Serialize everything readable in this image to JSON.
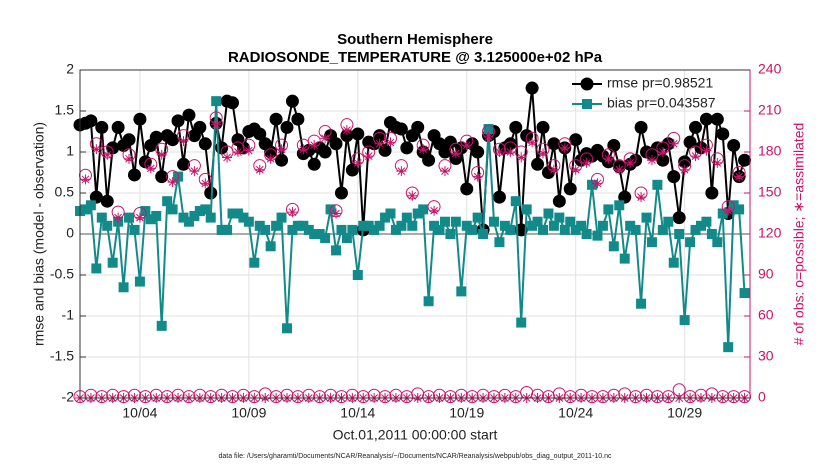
{
  "chart_data": {
    "type": "line",
    "title": "Southern Hemisphere",
    "subtitle": "RADIOSONDE_TEMPERATURE @ 3.125000e+02 hPa",
    "xlabel": "Oct.01,2011 00:00:00 start",
    "ylabel": "rmse and bias (model - observation)",
    "y2label": "# of obs: o=possible; ∗=assimilated",
    "footnote": "data file: /Users/gharamti/Documents/NCAR/Reanalysis/~/Documents/NCAR/Reanalysis/webpub/obs_diag_output_2011-10.nc",
    "xlim": [
      1.25,
      32
    ],
    "xticks": [
      {
        "value": 4,
        "label": "10/04"
      },
      {
        "value": 9,
        "label": "10/09"
      },
      {
        "value": 14,
        "label": "10/14"
      },
      {
        "value": 19,
        "label": "10/19"
      },
      {
        "value": 24,
        "label": "10/24"
      },
      {
        "value": 29,
        "label": "10/29"
      }
    ],
    "ylim": [
      -2,
      2
    ],
    "yticks": [
      -2,
      -1.5,
      -1,
      -0.5,
      0,
      0.5,
      1,
      1.5,
      2
    ],
    "y2lim": [
      0,
      240
    ],
    "y2ticks": [
      0,
      30,
      60,
      90,
      120,
      150,
      180,
      210,
      240
    ],
    "hline": 0,
    "grid": true,
    "legend": "upper right",
    "x": [
      1.25,
      1.5,
      1.75,
      2,
      2.25,
      2.5,
      2.75,
      3,
      3.25,
      3.5,
      3.75,
      4,
      4.25,
      4.5,
      4.75,
      5,
      5.25,
      5.5,
      5.75,
      6,
      6.25,
      6.5,
      6.75,
      7,
      7.25,
      7.5,
      7.75,
      8,
      8.25,
      8.5,
      8.75,
      9,
      9.25,
      9.5,
      9.75,
      10,
      10.25,
      10.5,
      10.75,
      11,
      11.25,
      11.5,
      11.75,
      12,
      12.25,
      12.5,
      12.75,
      13,
      13.25,
      13.5,
      13.75,
      14,
      14.25,
      14.5,
      14.75,
      15,
      15.25,
      15.5,
      15.75,
      16,
      16.25,
      16.5,
      16.75,
      17,
      17.25,
      17.5,
      17.75,
      18,
      18.25,
      18.5,
      18.75,
      19,
      19.25,
      19.5,
      19.75,
      20,
      20.25,
      20.5,
      20.75,
      21,
      21.25,
      21.5,
      21.75,
      22,
      22.25,
      22.5,
      22.75,
      23,
      23.25,
      23.5,
      23.75,
      24,
      24.25,
      24.5,
      24.75,
      25,
      25.25,
      25.5,
      25.75,
      26,
      26.25,
      26.5,
      26.75,
      27,
      27.25,
      27.5,
      27.75,
      28,
      28.25,
      28.5,
      28.75,
      29,
      29.25,
      29.5,
      29.75,
      30,
      30.25,
      30.5,
      30.75,
      31,
      31.25,
      31.5,
      31.75
    ],
    "series": [
      {
        "name": "rmse pr=0.98521",
        "color": "#000000",
        "marker": "circle",
        "values": [
          1.33,
          1.35,
          1.38,
          0.45,
          1.3,
          0.4,
          1.05,
          1.3,
          1.08,
          1.15,
          0.72,
          1.4,
          0.88,
          1.08,
          1.18,
          0.7,
          1.2,
          1.15,
          1.38,
          0.85,
          1.45,
          1.2,
          1.3,
          1.1,
          0.5,
          1.35,
          1.05,
          1.62,
          1.6,
          1.15,
          1.05,
          1.25,
          1.28,
          1.22,
          1.1,
          1.0,
          1.4,
          0.9,
          1.3,
          1.62,
          1.4,
          0.98,
          1.02,
          0.85,
          1.05,
          1.0,
          1.2,
          1.1,
          0.5,
          1.2,
          0.78,
          1.22,
          0.05,
          1.12,
          1.1,
          1.2,
          1.02,
          1.36,
          1.3,
          1.28,
          1.05,
          1.2,
          1.3,
          1.0,
          0.9,
          1.2,
          1.1,
          1.0,
          1.12,
          0.92,
          1.05,
          0.55,
          1.1,
          1.0,
          0.05,
          1.2,
          1.25,
          0.45,
          1.05,
          1.1,
          1.3,
          0.05,
          1.2,
          1.78,
          0.85,
          1.3,
          0.75,
          1.1,
          0.4,
          1.05,
          0.55,
          1.15,
          0.9,
          0.98,
          0.95,
          1.02,
          0.95,
          0.88,
          1.08,
          0.82,
          0.45,
          0.85,
          0.9,
          1.3,
          1.0,
          0.98,
          1.05,
          0.9,
          1.1,
          0.7,
          0.2,
          0.88,
          1.12,
          1.3,
          1.05,
          1.4,
          0.5,
          1.4,
          1.22,
          0.25,
          1.08,
          0.7,
          0.9
        ]
      },
      {
        "name": "bias pr=0.043587",
        "color": "#138a8a",
        "marker": "square",
        "values": [
          0.28,
          0.3,
          0.35,
          -0.42,
          0.2,
          0.1,
          -0.35,
          0.15,
          -0.65,
          0.2,
          0.05,
          -0.58,
          0.28,
          0.18,
          0.22,
          -1.12,
          0.4,
          0.3,
          0.7,
          0.2,
          0.15,
          0.22,
          0.28,
          0.3,
          0.2,
          1.62,
          0.05,
          0.05,
          0.25,
          0.25,
          0.2,
          0.15,
          -0.35,
          0.1,
          0.05,
          -0.15,
          0.1,
          0.2,
          -1.15,
          0.05,
          0.1,
          0.1,
          0.05,
          0.0,
          0.0,
          -0.05,
          0.3,
          -0.2,
          0.05,
          -0.05,
          0.05,
          -0.5,
          0.1,
          0.1,
          0.05,
          0.1,
          0.2,
          0.25,
          0.05,
          0.1,
          0.2,
          0.1,
          0.25,
          0.3,
          -0.82,
          0.1,
          0.05,
          0.15,
          0.0,
          0.15,
          -0.7,
          0.1,
          0.05,
          0.2,
          0.0,
          1.28,
          0.15,
          -0.1,
          0.1,
          0.05,
          0.4,
          -1.08,
          0.3,
          0.1,
          0.15,
          0.05,
          0.25,
          0.1,
          0.2,
          0.05,
          0.15,
          0.05,
          0.1,
          0.0,
          0.6,
          -0.02,
          0.1,
          0.3,
          -0.15,
          0.35,
          -0.3,
          0.1,
          0.05,
          -0.85,
          0.2,
          -0.1,
          0.6,
          0.05,
          0.15,
          -0.35,
          0.0,
          -1.05,
          -0.1,
          0.05,
          0.1,
          0.15,
          0.0,
          -0.1,
          0.25,
          -1.38,
          0.35,
          0.3,
          -0.72
        ]
      },
      {
        "color": "#c8156a",
        "marker": "open-circle",
        "axis": "y2",
        "values": [
          1,
          163,
          2,
          186,
          1,
          180,
          2,
          136,
          1,
          178,
          2,
          135,
          1,
          171,
          2,
          182,
          1,
          162,
          2,
          192,
          1,
          170,
          2,
          160,
          1,
          205,
          2,
          180,
          1,
          183,
          2,
          185,
          1,
          170,
          3,
          178,
          1,
          185,
          2,
          138,
          1,
          185,
          2,
          188,
          1,
          195,
          2,
          137,
          1,
          200,
          2,
          175,
          1,
          180,
          2,
          190,
          1,
          190,
          2,
          170,
          1,
          150,
          3,
          185,
          1,
          140,
          2,
          170,
          1,
          182,
          2,
          188,
          1,
          165,
          2,
          195,
          1,
          182,
          2,
          183,
          1,
          180,
          4,
          190,
          2,
          182,
          1,
          170,
          3,
          186,
          1,
          170,
          2,
          175,
          1,
          160,
          1,
          178,
          2,
          170,
          3,
          175,
          1,
          150,
          2,
          178,
          1,
          183,
          1,
          190,
          6,
          170,
          1,
          180,
          2,
          185,
          3,
          175,
          1,
          140,
          1,
          165,
          1
        ]
      },
      {
        "color": "#c8156a",
        "marker": "asterisk",
        "axis": "y2",
        "values": [
          0,
          160,
          0,
          182,
          0,
          178,
          0,
          132,
          0,
          175,
          0,
          132,
          0,
          168,
          0,
          178,
          0,
          158,
          0,
          188,
          0,
          166,
          0,
          157,
          0,
          200,
          0,
          176,
          0,
          180,
          0,
          181,
          0,
          167,
          0,
          175,
          0,
          182,
          0,
          136,
          0,
          182,
          0,
          185,
          0,
          190,
          0,
          135,
          0,
          196,
          0,
          172,
          0,
          177,
          0,
          186,
          0,
          187,
          0,
          166,
          0,
          148,
          0,
          182,
          0,
          137,
          0,
          166,
          0,
          179,
          0,
          185,
          0,
          162,
          0,
          191,
          0,
          180,
          0,
          180,
          0,
          176,
          0,
          187,
          0,
          179,
          0,
          167,
          0,
          183,
          0,
          167,
          0,
          172,
          0,
          157,
          0,
          175,
          0,
          167,
          0,
          172,
          0,
          147,
          0,
          174,
          0,
          180,
          0,
          186,
          0,
          167,
          0,
          177,
          0,
          181,
          0,
          172,
          0,
          137,
          0,
          162,
          0
        ]
      }
    ]
  }
}
